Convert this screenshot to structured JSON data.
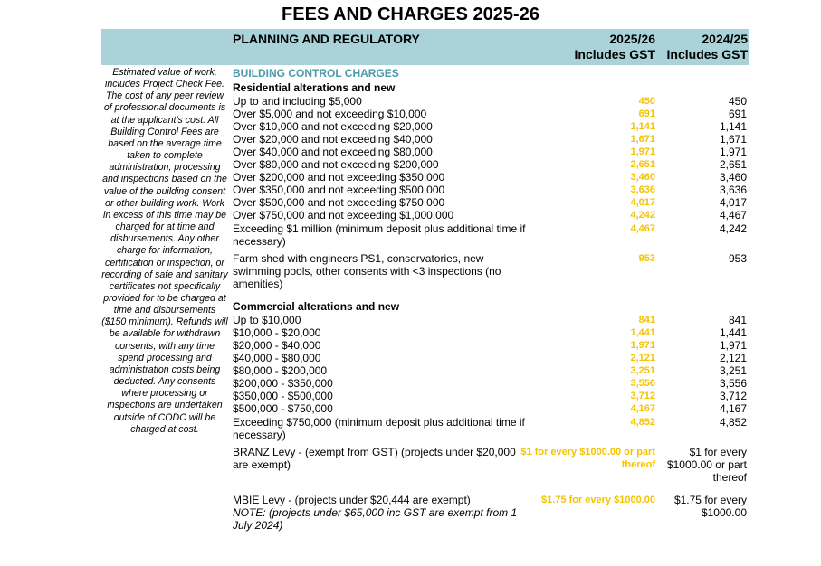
{
  "title": "FEES AND CHARGES 2025-26",
  "header": {
    "section": "PLANNING AND REGULATORY",
    "col1": [
      "2025/26",
      "Includes GST"
    ],
    "col2": [
      "2024/25",
      "Includes GST"
    ]
  },
  "note": "Estimated value of work, includes Project Check Fee. The cost of any peer review of professional documents is at the applicant's cost. All Building Control Fees are based on the average time taken to complete administration, processing and inspections based on the value of the building consent or other building work.  Work in excess of this time may be charged for at time and disbursements. Any other charge for information, certification or inspection, or recording of safe and sanitary certificates not specifically provided for to be charged at time and disbursements ($150 minimum). Refunds will be available for withdrawn consents, with any time spend processing and administration costs being deducted. Any consents where processing or inspections are undertaken outside of CODC will be charged at cost.",
  "building_control": "BUILDING CONTROL CHARGES",
  "residential": {
    "heading": "Residential alterations and new",
    "rows": [
      {
        "label": "Up to and including $5,000",
        "v25": "450",
        "v24": "450"
      },
      {
        "label": "Over $5,000 and not exceeding $10,000",
        "v25": "691",
        "v24": "691"
      },
      {
        "label": "Over $10,000 and not exceeding $20,000",
        "v25": "1,141",
        "v24": "1,141"
      },
      {
        "label": "Over $20,000 and not exceeding $40,000",
        "v25": "1,671",
        "v24": "1,671"
      },
      {
        "label": "Over $40,000 and not exceeding $80,000",
        "v25": "1,971",
        "v24": "1,971"
      },
      {
        "label": "Over $80,000 and not exceeding $200,000",
        "v25": "2,651",
        "v24": "2,651"
      },
      {
        "label": "Over $200,000 and not exceeding $350,000",
        "v25": "3,460",
        "v24": "3,460"
      },
      {
        "label": "Over $350,000 and not exceeding $500,000",
        "v25": "3,636",
        "v24": "3,636"
      },
      {
        "label": "Over $500,000 and not exceeding $750,000",
        "v25": "4,017",
        "v24": "4,017"
      },
      {
        "label": "Over $750,000 and not exceeding $1,000,000",
        "v25": "4,242",
        "v24": "4,467"
      },
      {
        "label": "Exceeding $1 million (minimum deposit plus additional time if necessary)",
        "v25": "4,467",
        "v24": "4,242"
      },
      {
        "label": "Farm shed with engineers PS1, conservatories, new swimming pools, other consents with <3 inspections (no amenities)",
        "v25": "953",
        "v24": "953"
      }
    ]
  },
  "commercial": {
    "heading": "Commercial alterations and new",
    "rows": [
      {
        "label": "Up to $10,000",
        "v25": "841",
        "v24": "841"
      },
      {
        "label": "$10,000 - $20,000",
        "v25": "1,441",
        "v24": "1,441"
      },
      {
        "label": "$20,000 - $40,000",
        "v25": "1,971",
        "v24": "1,971"
      },
      {
        "label": "$40,000 - $80,000",
        "v25": "2,121",
        "v24": "2,121"
      },
      {
        "label": "$80,000 - $200,000",
        "v25": "3,251",
        "v24": "3,251"
      },
      {
        "label": "$200,000 - $350,000",
        "v25": "3,556",
        "v24": "3,556"
      },
      {
        "label": "$350,000 - $500,000",
        "v25": "3,712",
        "v24": "3,712"
      },
      {
        "label": "$500,000 - $750,000",
        "v25": "4,167",
        "v24": "4,167"
      },
      {
        "label": "Exceeding $750,000 (minimum deposit plus additional time if necessary)",
        "v25": "4,852",
        "v24": "4,852"
      },
      {
        "label": "BRANZ Levy - (exempt from GST) (projects under $20,000 are exempt)",
        "v25": "$1 for every $1000.00 or part thereof",
        "v24": "$1 for every $1000.00 or part thereof"
      }
    ]
  },
  "mbie": {
    "label": "MBIE Levy - (projects under $20,444 are exempt)",
    "note": "NOTE: (projects under $65,000 inc GST are exempt from 1 July 2024)",
    "v25": "$1.75 for every $1000.00",
    "v24": "$1.75 for every $1000.00"
  },
  "colors": {
    "band": "#a9d3d8",
    "accent_text": "#4e9aa8",
    "value_2025": "#f5c400"
  }
}
